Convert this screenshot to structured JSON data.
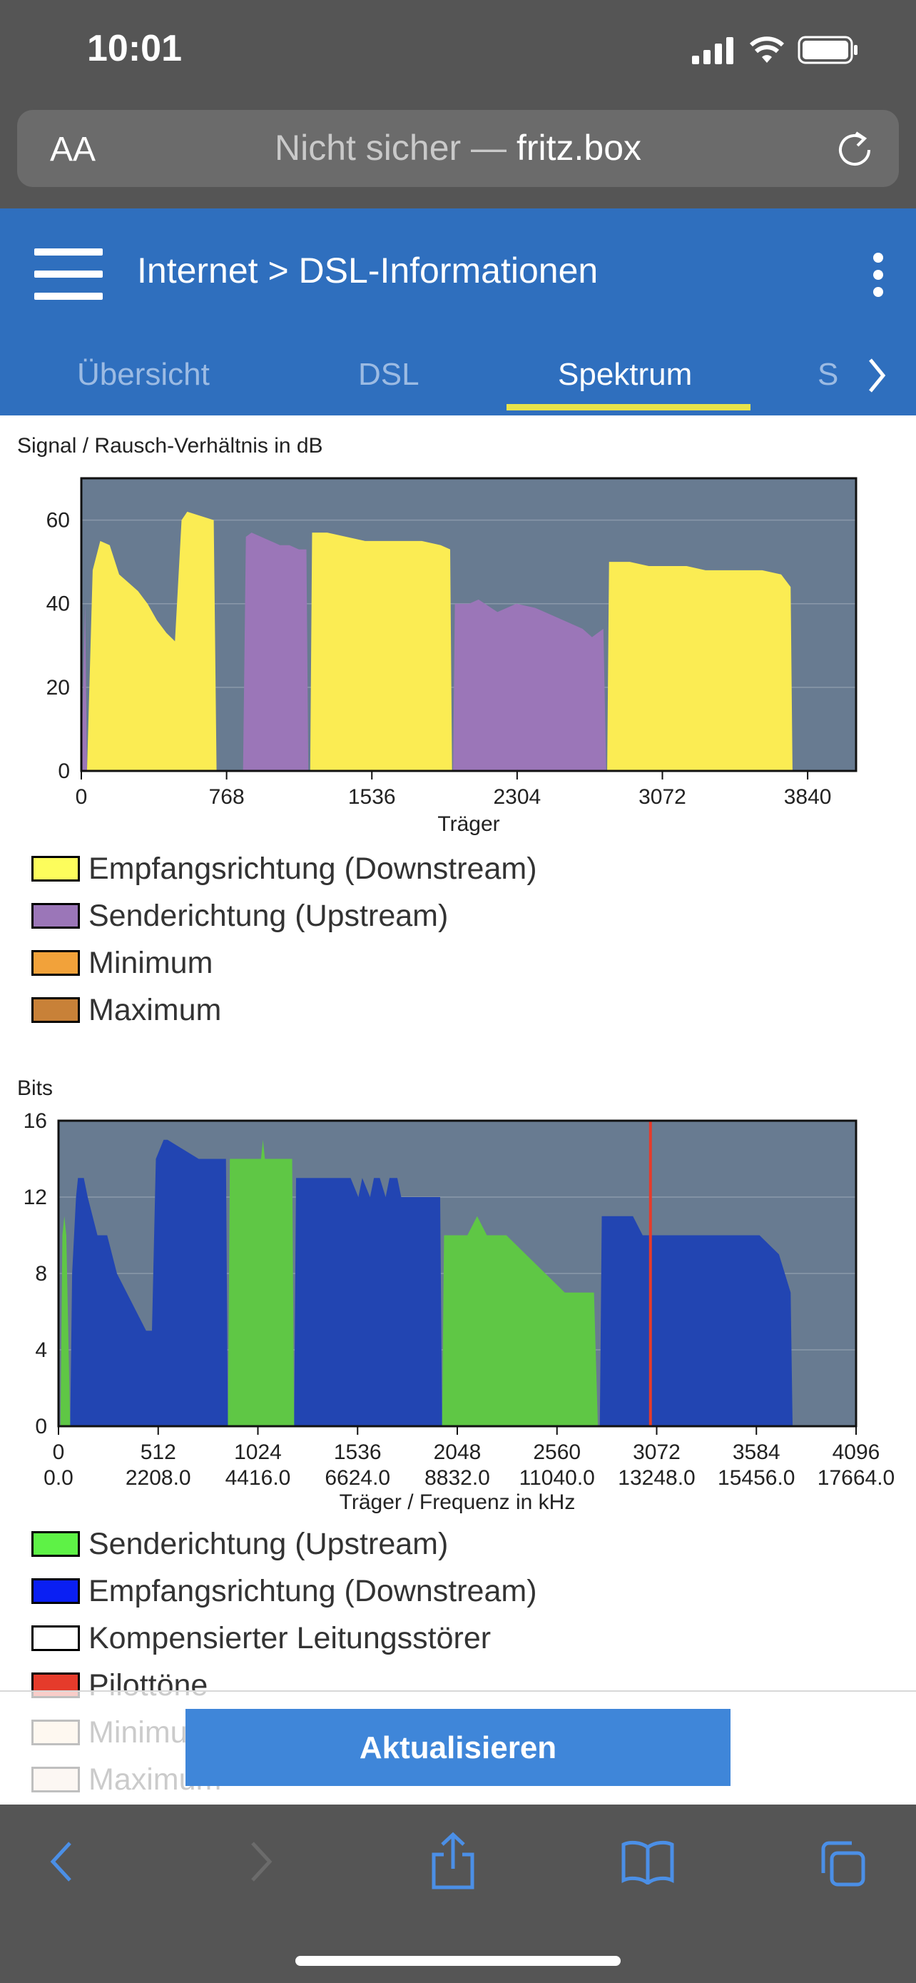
{
  "status": {
    "time": "10:01"
  },
  "browser": {
    "aa_label": "AA",
    "url_prefix": "Nicht sicher — ",
    "url_host": "fritz.box"
  },
  "header": {
    "breadcrumb": "Internet > DSL-Informationen",
    "tabs": [
      {
        "label": "Übersicht",
        "active": false
      },
      {
        "label": "DSL",
        "active": false
      },
      {
        "label": "Spektrum",
        "active": true
      },
      {
        "label": "S",
        "active": false
      }
    ]
  },
  "chart_data": [
    {
      "type": "area",
      "title": "Signal / Rausch-Verhältnis in dB",
      "xlabel": "Träger",
      "ylabel": "",
      "xlim": [
        0,
        4096
      ],
      "ylim": [
        0,
        70
      ],
      "xticks": [
        "0",
        "768",
        "1536",
        "2304",
        "3072",
        "3840"
      ],
      "yticks": [
        "0",
        "20",
        "40",
        "60"
      ],
      "grid": true,
      "series": [
        {
          "name": "Empfangsrichtung (Downstream)",
          "color": "#fbec53",
          "segments": [
            {
              "x": [
                30,
                60,
                100,
                150,
                200,
                250,
                300,
                350,
                400,
                450,
                495,
                530,
                560,
                700,
                715
              ],
              "y": [
                0,
                48,
                55,
                54,
                47,
                45,
                43,
                40,
                36,
                33,
                31,
                60,
                62,
                60,
                0
              ]
            },
            {
              "x": [
                1210,
                1220,
                1300,
                1400,
                1500,
                1600,
                1700,
                1800,
                1900,
                1950,
                1960
              ],
              "y": [
                0,
                57,
                57,
                56,
                55,
                55,
                55,
                55,
                54,
                53,
                0
              ]
            },
            {
              "x": [
                2780,
                2790,
                2900,
                3000,
                3100,
                3200,
                3300,
                3400,
                3500,
                3600,
                3700,
                3750,
                3760
              ],
              "y": [
                0,
                50,
                50,
                49,
                49,
                49,
                48,
                48,
                48,
                48,
                47,
                44,
                0
              ]
            }
          ]
        },
        {
          "name": "Senderichtung (Upstream)",
          "color": "#9b76b8",
          "segments": [
            {
              "x": [
                0,
                20,
                30
              ],
              "y": [
                0,
                40,
                0
              ]
            },
            {
              "x": [
                855,
                870,
                900,
                950,
                1000,
                1050,
                1100,
                1150,
                1190,
                1200
              ],
              "y": [
                0,
                56,
                57,
                56,
                55,
                54,
                54,
                53,
                53,
                0
              ]
            },
            {
              "x": [
                1965,
                1975,
                2050,
                2100,
                2200,
                2300,
                2400,
                2500,
                2600,
                2650,
                2700,
                2760,
                2775
              ],
              "y": [
                0,
                40,
                40,
                41,
                38,
                40,
                39,
                37,
                35,
                34,
                32,
                34,
                0
              ]
            }
          ]
        }
      ],
      "legend": [
        "Empfangsrichtung (Downstream)",
        "Senderichtung (Upstream)",
        "Minimum",
        "Maximum"
      ],
      "legend_colors": [
        "#fdfd5c",
        "#9b76b8",
        "#f2a23a",
        "#c88138"
      ]
    },
    {
      "type": "area",
      "title": "Bits",
      "xlabel": "Träger / Frequenz in kHz",
      "ylabel": "",
      "xlim": [
        0,
        4096
      ],
      "ylim": [
        0,
        16
      ],
      "xticks": [
        "0",
        "512",
        "1024",
        "1536",
        "2048",
        "2560",
        "3072",
        "3584",
        "4096"
      ],
      "xticks2": [
        "0.0",
        "2208.0",
        "4416.0",
        "6624.0",
        "8832.0",
        "11040.0",
        "13248.0",
        "15456.0",
        "17664.0"
      ],
      "yticks": [
        "0",
        "4",
        "8",
        "12",
        "16"
      ],
      "grid": true,
      "series": [
        {
          "name": "Empfangsrichtung (Downstream)",
          "color": "#2245b2",
          "segments": [
            {
              "x": [
                60,
                70,
                90,
                100,
                130,
                150,
                200,
                250,
                300,
                350,
                400,
                450,
                480,
                500,
                540,
                560,
                720,
                860,
                870
              ],
              "y": [
                0,
                8,
                12,
                13,
                13,
                12,
                10,
                10,
                8,
                7,
                6,
                5,
                5,
                14,
                15,
                15,
                14,
                14,
                0
              ]
            },
            {
              "x": [
                1210,
                1220,
                1500,
                1540,
                1560,
                1600,
                1620,
                1650,
                1680,
                1700,
                1740,
                1760,
                1900,
                1960,
                1970
              ],
              "y": [
                0,
                13,
                13,
                12,
                13,
                12,
                13,
                13,
                12,
                13,
                13,
                12,
                12,
                12,
                0
              ]
            },
            {
              "x": [
                2780,
                2790,
                2950,
                3000,
                3200,
                3400,
                3600,
                3700,
                3760,
                3770
              ],
              "y": [
                0,
                11,
                11,
                10,
                10,
                10,
                10,
                9,
                7,
                0
              ]
            }
          ]
        },
        {
          "name": "Senderichtung (Upstream)",
          "color": "#5fc745",
          "segments": [
            {
              "x": [
                10,
                20,
                30,
                40,
                60
              ],
              "y": [
                0,
                10,
                11,
                10,
                0
              ]
            },
            {
              "x": [
                870,
                880,
                1040,
                1050,
                1060,
                1200,
                1210
              ],
              "y": [
                0,
                14,
                14,
                15,
                14,
                14,
                0
              ]
            },
            {
              "x": [
                1970,
                1980,
                2100,
                2150,
                2200,
                2300,
                2400,
                2600,
                2650,
                2750,
                2770
              ],
              "y": [
                0,
                10,
                10,
                11,
                10,
                10,
                9,
                7,
                7,
                7,
                0
              ]
            }
          ]
        }
      ],
      "pilot_tone_x": 3040,
      "legend": [
        "Senderichtung (Upstream)",
        "Empfangsrichtung (Downstream)",
        "Kompensierter Leitungsstörer",
        "Pilottöne",
        "Minimum",
        "Maximum"
      ],
      "legend_colors": [
        "#5ef246",
        "#0a1ff3",
        "#ffffff",
        "#e53b2b",
        "#fbe4c4",
        "#f1dfd0"
      ]
    }
  ],
  "actions": {
    "refresh_label": "Aktualisieren"
  }
}
